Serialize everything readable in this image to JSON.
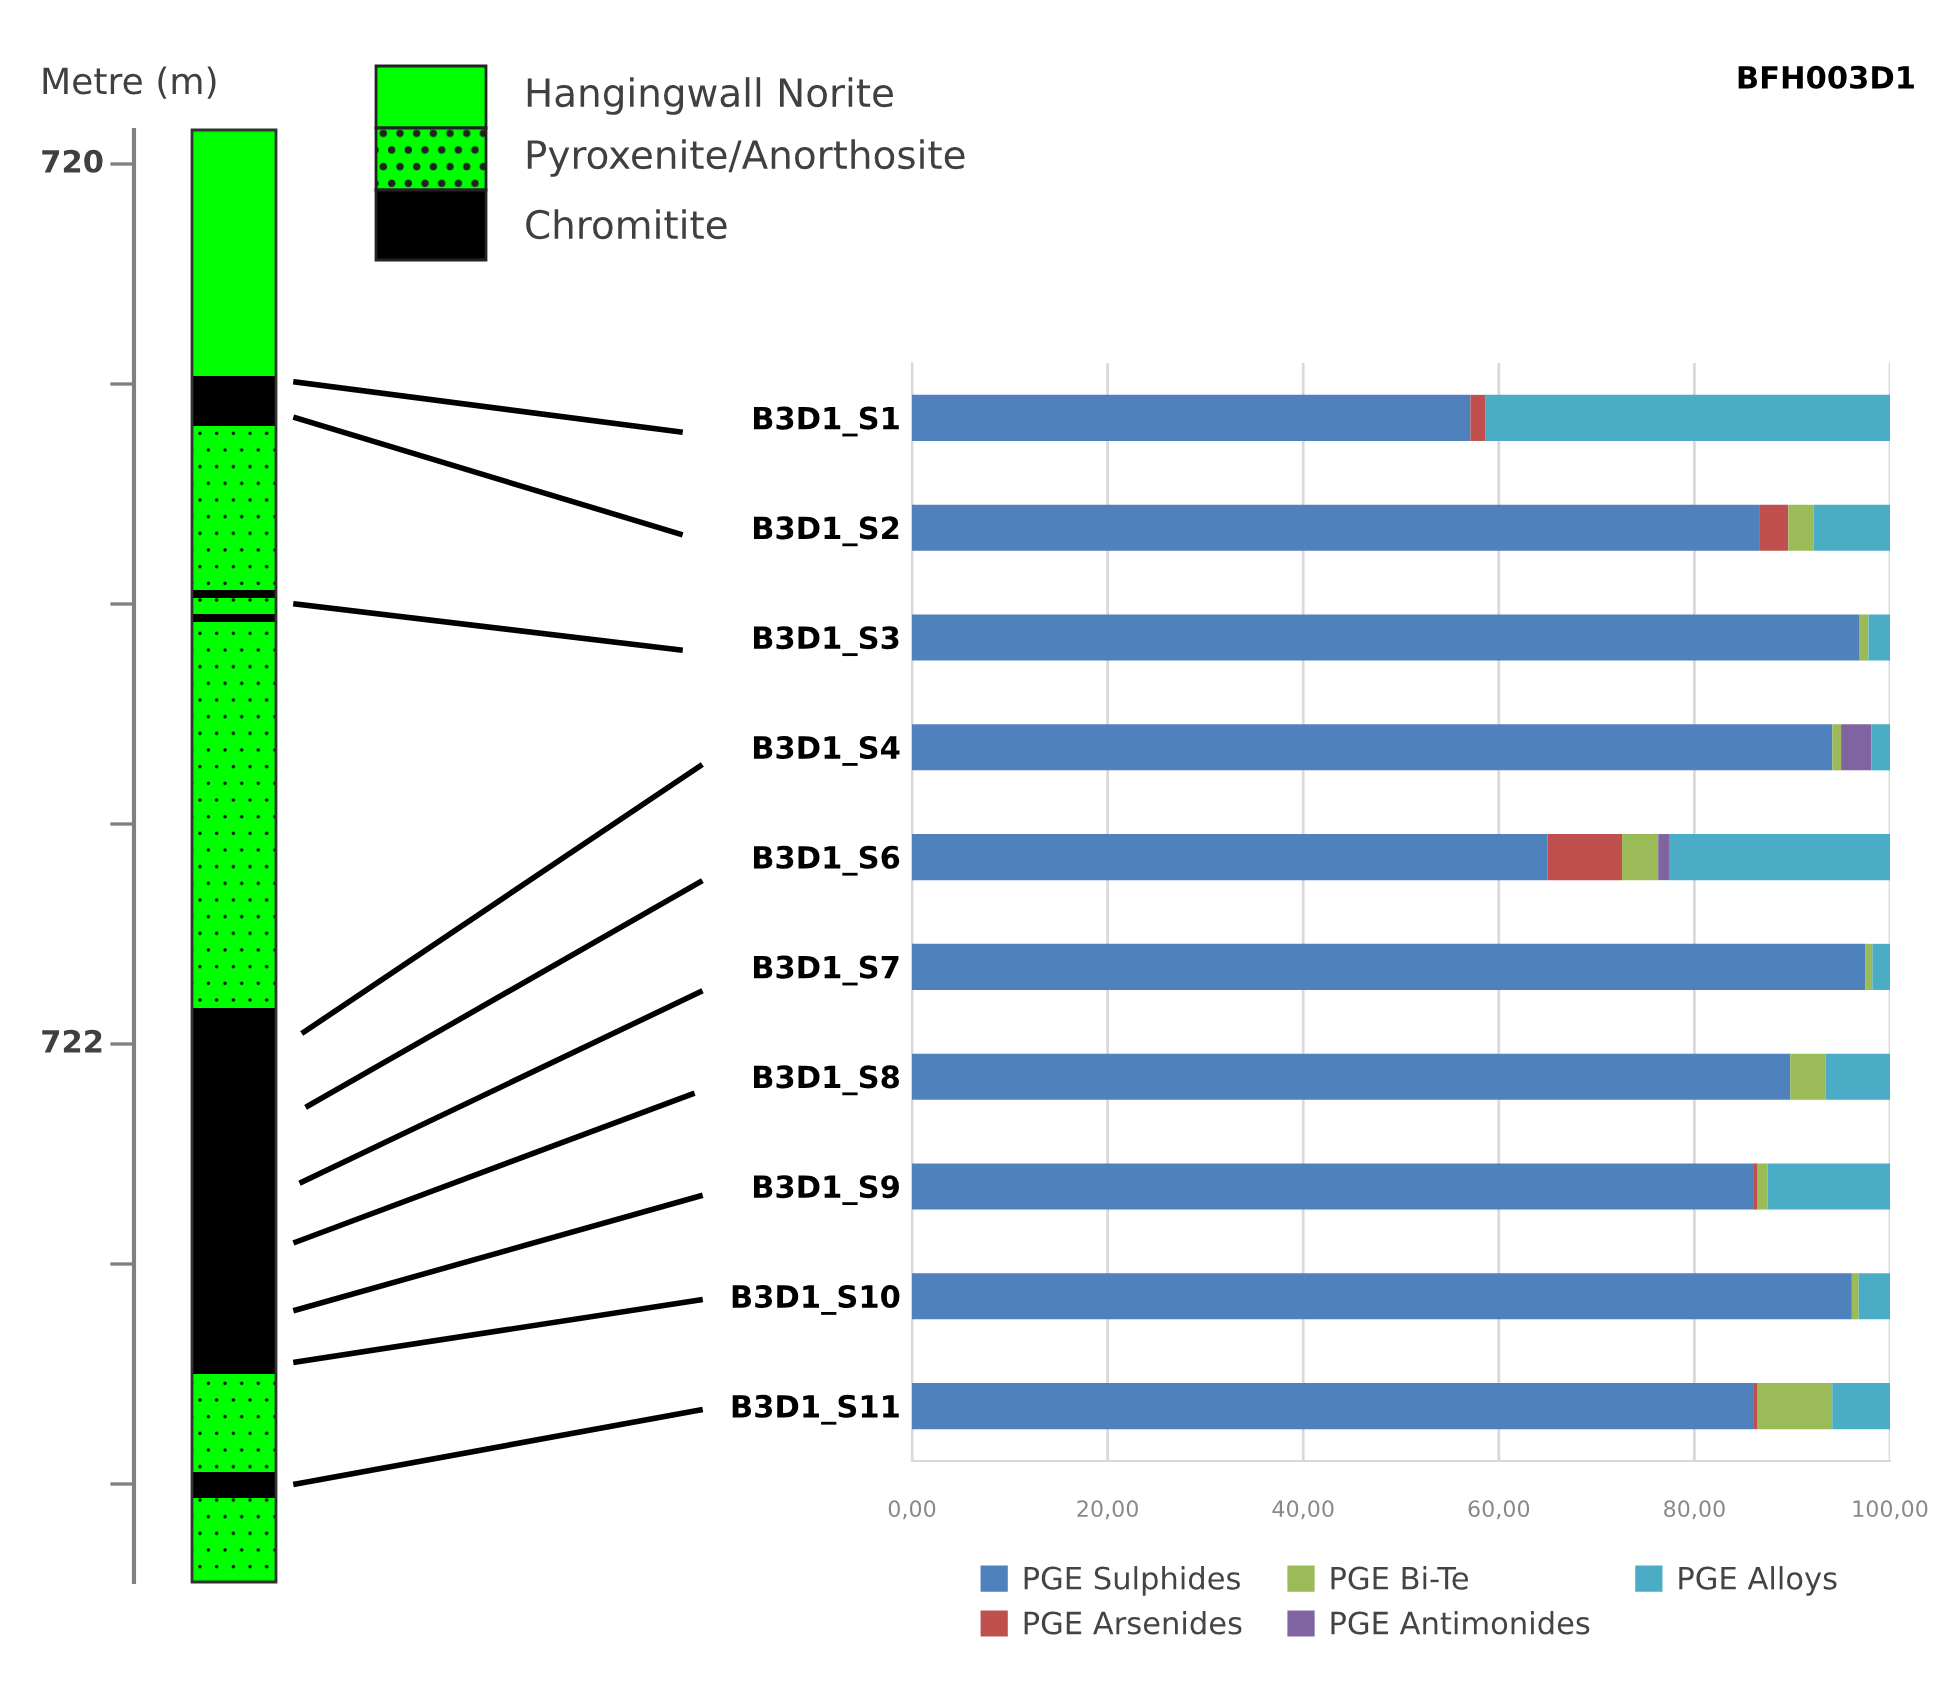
{
  "chart_data": [
    {
      "type": "other",
      "annotations": [
        "Metre (m)",
        "720",
        "722",
        "Hangingwall Norite",
        "Pyroxenite/Anorthosite",
        "Chromitite"
      ]
    },
    {
      "type": "bar",
      "orientation": "horizontal",
      "stacked": true,
      "title": "BFH003D1",
      "categories": [
        "B3D1_S1",
        "B3D1_S2",
        "B3D1_S3",
        "B3D1_S4",
        "B3D1_S6",
        "B3D1_S7",
        "B3D1_S8",
        "B3D1_S9",
        "B3D1_S10",
        "B3D1_S11"
      ],
      "series": [
        {
          "name": "PGE Sulphides",
          "color": "#4f81bd",
          "values": [
            57.1,
            86.7,
            96.9,
            94.1,
            65.0,
            97.5,
            89.8,
            86.0,
            96.1,
            86.0
          ]
        },
        {
          "name": "PGE Arsenides",
          "color": "#c0504d",
          "values": [
            1.5,
            2.9,
            0,
            0,
            7.6,
            0,
            0,
            0.4,
            0,
            0.4
          ]
        },
        {
          "name": "PGE Bi-Te",
          "color": "#9bbb59",
          "values": [
            0,
            2.6,
            0.9,
            0.9,
            3.7,
            0.7,
            3.6,
            1.1,
            0.7,
            7.7
          ]
        },
        {
          "name": "PGE Antimonides",
          "color": "#8064a2",
          "values": [
            0,
            0,
            0,
            3.1,
            1.1,
            0,
            0,
            0,
            0,
            0
          ]
        },
        {
          "name": "PGE Alloys",
          "color": "#4bacc6",
          "values": [
            41.4,
            7.8,
            2.2,
            1.9,
            22.6,
            1.8,
            6.6,
            12.5,
            3.2,
            5.9
          ]
        }
      ],
      "xlim": [
        0,
        100
      ],
      "xticks": [
        {
          "value": 0,
          "label": "0,00"
        },
        {
          "value": 20,
          "label": "20,00"
        },
        {
          "value": 40,
          "label": "40,00"
        },
        {
          "value": 60,
          "label": "60,00"
        },
        {
          "value": 80,
          "label": "80,00"
        },
        {
          "value": 100,
          "label": "100,00"
        }
      ],
      "grid": "x",
      "legend": "bottom"
    }
  ]
}
